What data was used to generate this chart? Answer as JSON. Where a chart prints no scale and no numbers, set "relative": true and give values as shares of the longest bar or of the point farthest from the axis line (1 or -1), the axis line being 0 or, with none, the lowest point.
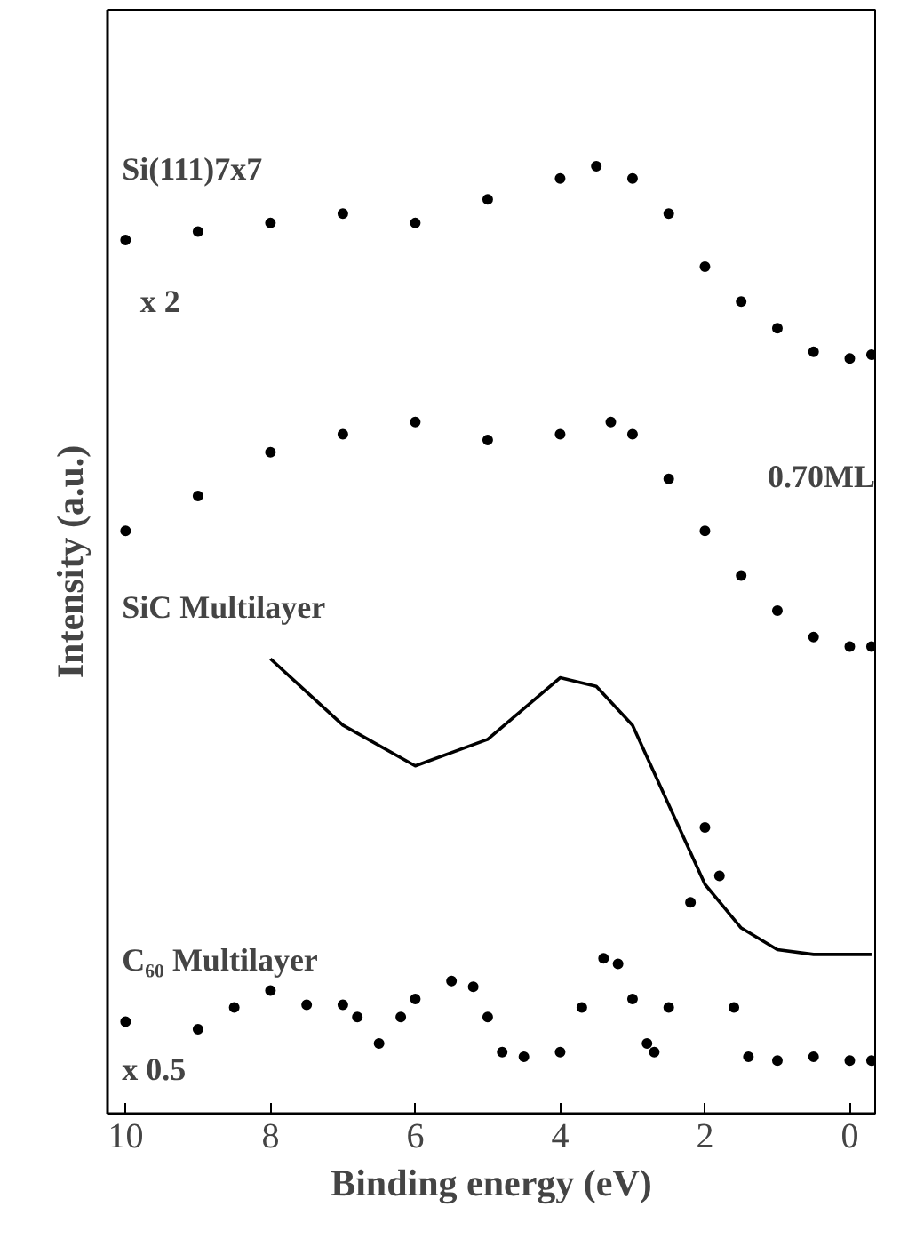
{
  "chart_data": {
    "type": "scatter",
    "relative": true,
    "xlabel": "Binding energy (eV)",
    "ylabel": "Intensity (a.u.)",
    "xlim": [
      10.25,
      -0.35
    ],
    "xticks": [
      10,
      8,
      6,
      4,
      2,
      0
    ],
    "tick_labels": "x",
    "grid": false,
    "marker": "circle",
    "series": [
      {
        "name": "Si(111)7x7",
        "color": "#000000",
        "x": [
          10,
          9,
          8,
          7,
          6,
          5,
          4,
          3.5,
          3,
          2.5,
          2,
          1.5,
          1,
          0.5,
          0,
          -0.3
        ],
        "values": [
          0.922,
          0.931,
          0.94,
          0.95,
          0.94,
          0.965,
          0.987,
          1,
          0.987,
          0.95,
          0.894,
          0.857,
          0.829,
          0.804,
          0.797,
          0.801
        ]
      },
      {
        "name": "0.70ML",
        "color": "#000000",
        "x": [
          10,
          9,
          8,
          7,
          6,
          5,
          4,
          3.3,
          3,
          2.5,
          2,
          1.5,
          1,
          0.5,
          0,
          -0.3
        ],
        "values": [
          0.615,
          0.652,
          0.698,
          0.717,
          0.73,
          0.711,
          0.717,
          0.73,
          0.717,
          0.67,
          0.615,
          0.568,
          0.531,
          0.503,
          0.493,
          0.493
        ]
      },
      {
        "name": "SiC Multilayer",
        "type": "line",
        "marker": "none",
        "color": "#000000",
        "x": [
          8,
          7,
          6,
          5,
          4,
          3.5,
          3,
          2.5,
          2,
          1.5,
          1,
          0.5,
          0,
          -0.3
        ],
        "values": [
          0.48,
          0.41,
          0.367,
          0.395,
          0.46,
          0.451,
          0.41,
          0.326,
          0.242,
          0.196,
          0.173,
          0.168,
          0.168,
          0.168
        ]
      },
      {
        "name": "C₆₀ Multilayer",
        "color": "#000000",
        "x": [
          10,
          9,
          8.5,
          8,
          7.5,
          7,
          6.8,
          6.5,
          6.2,
          6,
          5.5,
          5.2,
          5,
          4.8,
          4.5,
          4,
          3.7,
          3.4,
          3.2,
          3,
          2.8,
          2.7,
          2.5,
          2.2,
          2,
          1.8,
          1.6,
          1.4,
          1,
          0.5,
          0,
          -0.3
        ],
        "values": [
          0.097,
          0.089,
          0.112,
          0.13,
          0.115,
          0.115,
          0.102,
          0.074,
          0.102,
          0.121,
          0.14,
          0.134,
          0.102,
          0.065,
          0.06,
          0.065,
          0.112,
          0.164,
          0.158,
          0.121,
          0.074,
          0.065,
          0.112,
          0.223,
          0.302,
          0.251,
          0.112,
          0.06,
          0.056,
          0.06,
          0.056,
          0.056
        ]
      }
    ],
    "annotations": [
      "x 2",
      "x 0.5"
    ]
  }
}
